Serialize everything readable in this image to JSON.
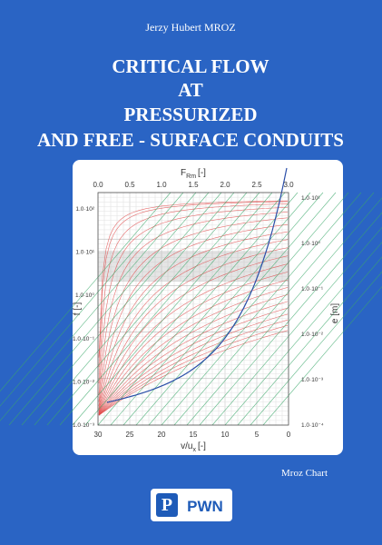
{
  "cover": {
    "author": "Jerzy Hubert MROZ",
    "title_lines": [
      "CRITICAL FLOW",
      "AT",
      "PRESSURIZED",
      "AND FREE - SURFACE CONDUITS"
    ],
    "chart": {
      "top_axis_title": {
        "main": "F",
        "sub": "Rm",
        "unit": "[-]"
      },
      "top_ticks": [
        "0.0",
        "0.5",
        "1.0",
        "1.5",
        "2.0",
        "2.5",
        "3.0"
      ],
      "bottom_axis_title": {
        "main": "v/u",
        "sub": "x",
        "unit": "[-]"
      },
      "bottom_ticks": [
        "30",
        "25",
        "20",
        "15",
        "10",
        "5",
        "0"
      ],
      "left_axis_title": "f [-]",
      "left_ticks": [
        "1.0·10²",
        "1.0·10¹",
        "1.0·10⁰",
        "1.0·10⁻¹",
        "1.0·10⁻²",
        "1.0·10⁻³"
      ],
      "right_axis_title": "e [m]",
      "right_ticks": [
        "1.0·10¹",
        "1.0·10⁰",
        "1.0·10⁻¹",
        "1.0·10⁻²",
        "1.0·10⁻³",
        "1.0·10⁻⁴"
      ]
    },
    "caption": "Mroz Chart",
    "publisher": "PWN"
  }
}
